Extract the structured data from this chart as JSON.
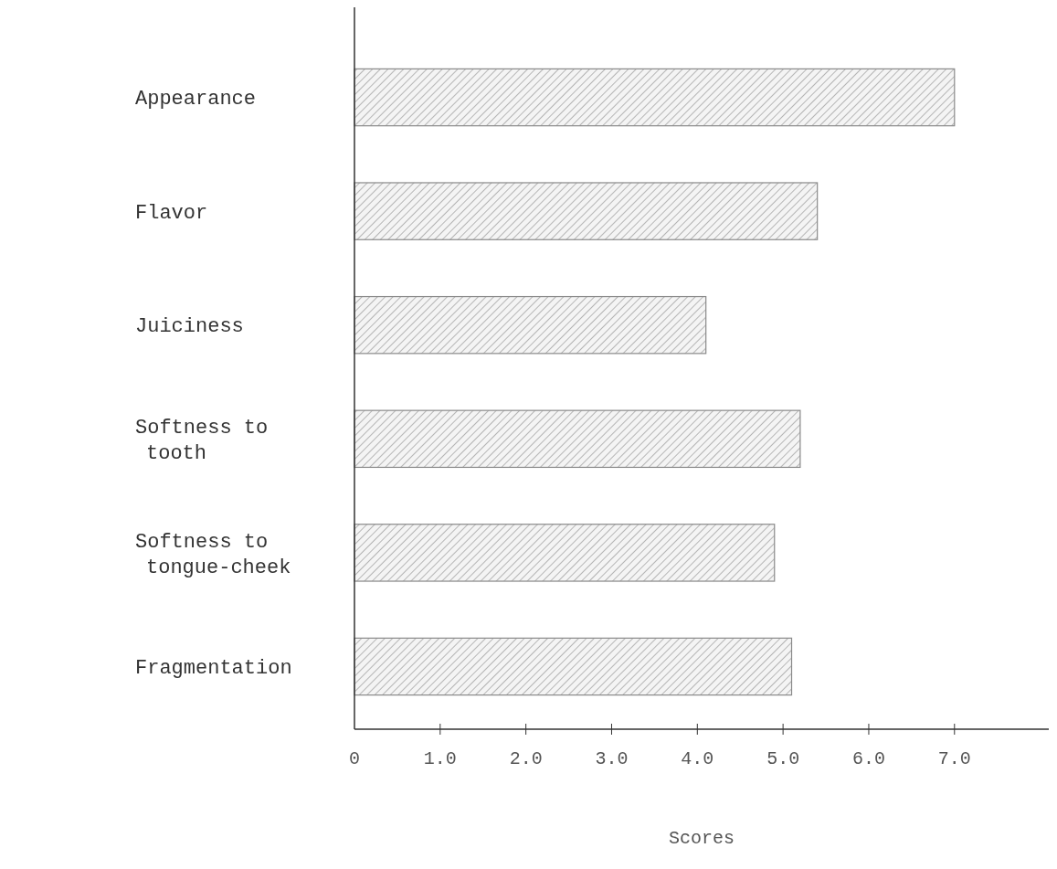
{
  "chart_data": {
    "type": "bar",
    "orientation": "horizontal",
    "xlabel": "Scores",
    "categories": [
      "Appearance",
      "Flavor",
      "Juiciness",
      "Softness to\ntooth",
      "Softness to\ntongue-cheek",
      "Fragmentation"
    ],
    "values": [
      7.0,
      5.4,
      4.1,
      5.2,
      4.9,
      5.1
    ],
    "color": "#8a8a8a",
    "xlim": [
      0,
      8.1
    ],
    "xticks": [
      {
        "value": 0,
        "label": "0"
      },
      {
        "value": 1,
        "label": "1.0"
      },
      {
        "value": 2,
        "label": "2.0"
      },
      {
        "value": 3,
        "label": "3.0"
      },
      {
        "value": 4,
        "label": "4.0"
      },
      {
        "value": 5,
        "label": "5.0"
      },
      {
        "value": 6,
        "label": "6.0"
      },
      {
        "value": 7,
        "label": "7.0"
      }
    ],
    "grid": false
  }
}
